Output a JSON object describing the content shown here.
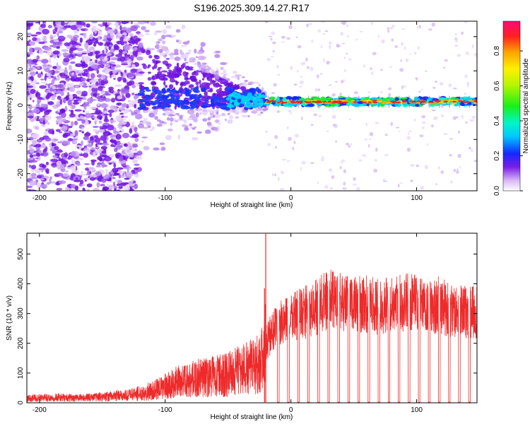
{
  "figure_title": "S196.2025.309.14.27.R17",
  "colors": {
    "snr_line": "#ee2a2a",
    "spectrum_low": "#7a1ee6",
    "spectrum_peak": "#e8232a",
    "axis": "#000000"
  },
  "chart_data": [
    {
      "type": "heatmap",
      "title": "S196.2025.309.14.27.R17",
      "xlabel": "Height of straight line (km)",
      "ylabel": "Frequency (Hz)",
      "xlim": [
        -210,
        148
      ],
      "ylim": [
        -25,
        24.5
      ],
      "x_ticks": [
        -200,
        -100,
        0,
        100
      ],
      "x_tick_labels": [
        "-200",
        "-100",
        "0",
        "100"
      ],
      "y_ticks": [
        -20,
        -10,
        0,
        10,
        20
      ],
      "y_tick_labels": [
        "-20",
        "-10",
        "0",
        "10",
        "20"
      ],
      "colorbar": {
        "label": "Normalized spectral amplitude",
        "range": [
          0,
          0.97
        ],
        "ticks": [
          0.0,
          0.2,
          0.4,
          0.6,
          0.8
        ],
        "tick_labels": [
          "0.0",
          "0.2",
          "0.4",
          "0.6",
          "0.8"
        ]
      },
      "features": {
        "carrier_start_km": -20,
        "carrier_frequency_hz": 1,
        "carrier_peak_amplitude": 0.9,
        "noise_region_end_km": -120,
        "transition_region_km": [
          -120,
          -20
        ]
      }
    },
    {
      "type": "line",
      "xlabel": "Height of straight line (km)",
      "ylabel": "SNR (10 * v/v)",
      "xlim": [
        -210,
        148
      ],
      "ylim": [
        0,
        570
      ],
      "x_ticks": [
        -200,
        -100,
        0,
        100
      ],
      "x_tick_labels": [
        "-200",
        "-100",
        "0",
        "100"
      ],
      "y_ticks": [
        0,
        100,
        200,
        300,
        400,
        500
      ],
      "y_tick_labels": [
        "0",
        "100",
        "200",
        "300",
        "400",
        "500"
      ],
      "series": [
        {
          "name": "SNR",
          "color": "#ee2a2a",
          "x": [
            -210,
            -190,
            -170,
            -150,
            -130,
            -110,
            -90,
            -70,
            -50,
            -40,
            -30,
            -22,
            -20,
            -15,
            -10,
            -5,
            0,
            10,
            20,
            30,
            40,
            50,
            60,
            70,
            80,
            90,
            100,
            110,
            120,
            130,
            140,
            148
          ],
          "y": [
            15,
            18,
            16,
            20,
            25,
            40,
            70,
            85,
            95,
            110,
            120,
            150,
            200,
            240,
            260,
            270,
            290,
            300,
            320,
            350,
            340,
            330,
            330,
            320,
            330,
            340,
            330,
            320,
            330,
            300,
            310,
            300
          ],
          "spikes": [
            {
              "x": -20,
              "y": 570
            },
            {
              "x": -21,
              "y": 385
            }
          ],
          "dropout_x": [
            -10,
            -2,
            6,
            14,
            22,
            30,
            38,
            46,
            54,
            62,
            70,
            78,
            86,
            94,
            102,
            110,
            118,
            126,
            134,
            142
          ]
        }
      ]
    }
  ]
}
